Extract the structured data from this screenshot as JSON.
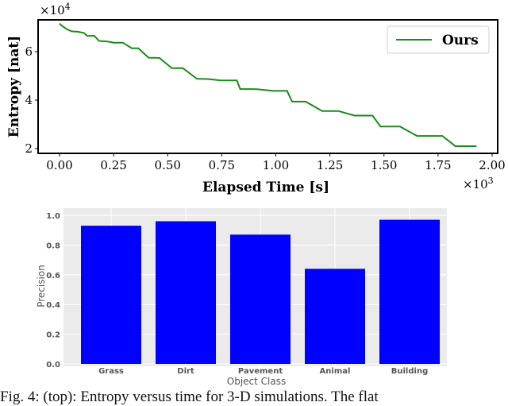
{
  "chart_data": [
    {
      "type": "line",
      "xlabel": "Elapsed Time [s]",
      "ylabel": "Entropy [nat]",
      "x_multiplier_label": "×10",
      "x_multiplier_exp": "3",
      "y_multiplier_label": "×10",
      "y_multiplier_exp": "4",
      "xlim": [
        -100,
        2000
      ],
      "ylim": [
        18700,
        73000
      ],
      "x_ticks": [
        0,
        250,
        500,
        750,
        1000,
        1250,
        1500,
        1750,
        2000
      ],
      "x_tick_labels": [
        "0.00",
        "0.25",
        "0.50",
        "0.75",
        "1.00",
        "1.25",
        "1.50",
        "1.75",
        "2.00"
      ],
      "y_ticks": [
        20000,
        40000,
        60000
      ],
      "y_tick_labels": [
        "2",
        "4",
        "6"
      ],
      "grid": false,
      "legend_placement": "top-right",
      "series": [
        {
          "name": "Ours",
          "color": "#1a8a1a",
          "x": [
            0,
            10,
            33,
            56,
            86,
            113,
            128,
            161,
            183,
            221,
            251,
            293,
            334,
            364,
            412,
            462,
            519,
            570,
            635,
            687,
            747,
            820,
            835,
            912,
            988,
            1052,
            1075,
            1138,
            1214,
            1289,
            1364,
            1447,
            1484,
            1574,
            1653,
            1770,
            1830,
            1928
          ],
          "y": [
            71600,
            70700,
            69300,
            68400,
            68200,
            67700,
            66500,
            66500,
            64400,
            64200,
            63700,
            63700,
            61400,
            61400,
            57500,
            57400,
            53200,
            53200,
            48800,
            48700,
            48100,
            48100,
            44600,
            44500,
            43800,
            43800,
            39400,
            39400,
            35500,
            35500,
            33600,
            33600,
            29100,
            29100,
            25200,
            25200,
            21000,
            21000
          ]
        }
      ]
    },
    {
      "type": "bar",
      "xlabel": "Object Class",
      "ylabel": "Precision",
      "categories": [
        "Grass",
        "Dirt",
        "Pavement",
        "Animal",
        "Building"
      ],
      "values": [
        0.93,
        0.96,
        0.87,
        0.64,
        0.97
      ],
      "ylim": [
        0,
        1.0
      ],
      "y_ticks": [
        0,
        0.2,
        0.4,
        0.6,
        0.8,
        1.0
      ],
      "y_tick_labels": [
        "0.0",
        "0.2",
        "0.4",
        "0.6",
        "0.8",
        "1.0"
      ],
      "grid": true,
      "bar_color": "#0000ff",
      "background_color": "#ebebeb"
    }
  ],
  "caption": "Fig. 4: (top): Entropy versus time for 3-D simulations. The flat"
}
